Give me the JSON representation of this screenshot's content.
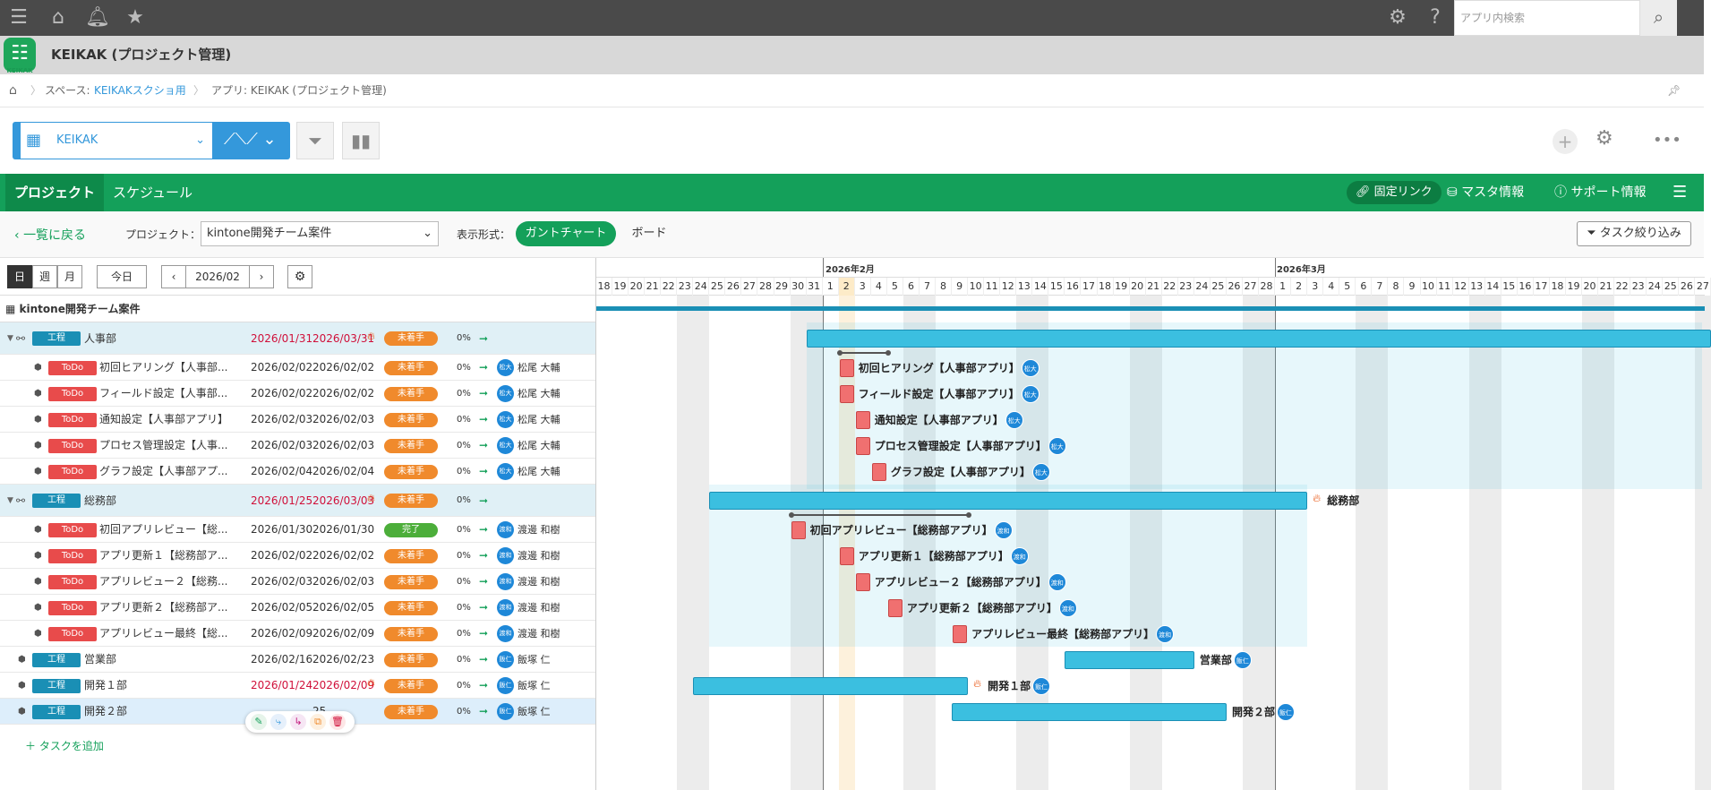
{
  "topbar": {
    "search_placeholder": "アプリ内検索"
  },
  "app": {
    "title": "KEIKAK (プロジェクト管理)",
    "logo_text": "KEIKAK"
  },
  "breadcrumb": {
    "space": "スペース: ",
    "space_link": "KEIKAKスクショ用",
    "app": "アプリ: KEIKAK (プロジェクト管理)"
  },
  "view": {
    "name": "KEIKAK"
  },
  "tabs": {
    "project": "プロジェクト",
    "schedule": "スケジュール",
    "permalink": "固定リンク",
    "master": "マスタ情報",
    "support": "サポート情報"
  },
  "filter": {
    "back": "一覧に戻る",
    "project_label": "プロジェクト：",
    "project_value": "kintone開発チーム案件",
    "display_label": "表示形式：",
    "gantt": "ガントチャート",
    "board": "ボード",
    "task_filter": "タスク絞り込み"
  },
  "controls": {
    "day": "日",
    "week": "週",
    "month": "月",
    "today": "今日",
    "current": "2026/02"
  },
  "project_title": "kintone開発チーム案件",
  "add_task": "＋ タスクを追加",
  "months": [
    "2026年2月",
    "2026年3月"
  ],
  "days": [
    "18",
    "19",
    "20",
    "21",
    "22",
    "23",
    "24",
    "25",
    "26",
    "27",
    "28",
    "29",
    "30",
    "31",
    "1",
    "2",
    "3",
    "4",
    "5",
    "6",
    "7",
    "8",
    "9",
    "10",
    "11",
    "12",
    "13",
    "14",
    "15",
    "16",
    "17",
    "18",
    "19",
    "20",
    "21",
    "22",
    "23",
    "24",
    "25",
    "26",
    "27",
    "28",
    "1",
    "2",
    "3",
    "4",
    "5",
    "6",
    "7",
    "8",
    "9",
    "10",
    "11",
    "12",
    "13",
    "14",
    "15",
    "16",
    "17",
    "18",
    "19",
    "20",
    "21",
    "22",
    "23",
    "24",
    "25",
    "26",
    "27"
  ],
  "colors": {
    "green": "#14a05a",
    "blue": "#3498db",
    "bar": "#3bbfe0",
    "todo": "#e84b4b",
    "pending": "#f08a2c",
    "done": "#4cae3a"
  },
  "rows": [
    {
      "kind": "group",
      "type": "工程",
      "name": "人事部",
      "start": "2026/01/31",
      "end": "2026/03/31",
      "late": true,
      "status": "未着手",
      "progress": "0%",
      "bar_label": ""
    },
    {
      "kind": "task",
      "type": "ToDo",
      "name": "初回ヒアリング【人事部...",
      "start": "2026/02/02",
      "end": "2026/02/02",
      "status": "未着手",
      "progress": "0%",
      "avatar": "松大",
      "user": "松尾 大輔",
      "bar_label": "初回ヒアリング【人事部アプリ】"
    },
    {
      "kind": "task",
      "type": "ToDo",
      "name": "フィールド設定【人事部...",
      "start": "2026/02/02",
      "end": "2026/02/02",
      "status": "未着手",
      "progress": "0%",
      "avatar": "松大",
      "user": "松尾 大輔",
      "bar_label": "フィールド設定【人事部アプリ】"
    },
    {
      "kind": "task",
      "type": "ToDo",
      "name": "通知設定【人事部アプリ】",
      "start": "2026/02/03",
      "end": "2026/02/03",
      "status": "未着手",
      "progress": "0%",
      "avatar": "松大",
      "user": "松尾 大輔",
      "bar_label": "通知設定【人事部アプリ】"
    },
    {
      "kind": "task",
      "type": "ToDo",
      "name": "プロセス管理設定【人事...",
      "start": "2026/02/03",
      "end": "2026/02/03",
      "status": "未着手",
      "progress": "0%",
      "avatar": "松大",
      "user": "松尾 大輔",
      "bar_label": "プロセス管理設定【人事部アプリ】"
    },
    {
      "kind": "task",
      "type": "ToDo",
      "name": "グラフ設定【人事部アプ...",
      "start": "2026/02/04",
      "end": "2026/02/04",
      "status": "未着手",
      "progress": "0%",
      "avatar": "松大",
      "user": "松尾 大輔",
      "bar_label": "グラフ設定【人事部アプリ】"
    },
    {
      "kind": "group",
      "type": "工程",
      "name": "総務部",
      "start": "2026/01/25",
      "end": "2026/03/03",
      "late": true,
      "status": "未着手",
      "progress": "0%",
      "bar_label": "総務部"
    },
    {
      "kind": "task",
      "type": "ToDo",
      "name": "初回アプリレビュー【総...",
      "start": "2026/01/30",
      "end": "2026/01/30",
      "status": "完了",
      "progress": "0%",
      "avatar": "渡和",
      "user": "渡邊 和樹",
      "bar_label": "初回アプリレビュー【総務部アプリ】"
    },
    {
      "kind": "task",
      "type": "ToDo",
      "name": "アプリ更新１【総務部ア...",
      "start": "2026/02/02",
      "end": "2026/02/02",
      "status": "未着手",
      "progress": "0%",
      "avatar": "渡和",
      "user": "渡邊 和樹",
      "bar_label": "アプリ更新１【総務部アプリ】"
    },
    {
      "kind": "task",
      "type": "ToDo",
      "name": "アプリレビュー２【総務...",
      "start": "2026/02/03",
      "end": "2026/02/03",
      "status": "未着手",
      "progress": "0%",
      "avatar": "渡和",
      "user": "渡邊 和樹",
      "bar_label": "アプリレビュー２【総務部アプリ】"
    },
    {
      "kind": "task",
      "type": "ToDo",
      "name": "アプリ更新２【総務部ア...",
      "start": "2026/02/05",
      "end": "2026/02/05",
      "status": "未着手",
      "progress": "0%",
      "avatar": "渡和",
      "user": "渡邊 和樹",
      "bar_label": "アプリ更新２【総務部アプリ】"
    },
    {
      "kind": "task",
      "type": "ToDo",
      "name": "アプリレビュー最終【総...",
      "start": "2026/02/09",
      "end": "2026/02/09",
      "status": "未着手",
      "progress": "0%",
      "avatar": "渡和",
      "user": "渡邊 和樹",
      "bar_label": "アプリレビュー最終【総務部アプリ】"
    },
    {
      "kind": "proc",
      "type": "工程",
      "name": "営業部",
      "start": "2026/02/16",
      "end": "2026/02/23",
      "late": false,
      "status": "未着手",
      "progress": "0%",
      "avatar": "飯仁",
      "user": "飯塚 仁",
      "bar_label": "営業部"
    },
    {
      "kind": "proc",
      "type": "工程",
      "name": "開発１部",
      "start": "2026/01/24",
      "end": "2026/02/09",
      "late": true,
      "status": "未着手",
      "progress": "0%",
      "avatar": "飯仁",
      "user": "飯塚 仁",
      "bar_label": "開発１部"
    },
    {
      "kind": "proc",
      "type": "工程",
      "name": "開発２部",
      "start": "",
      "end": "25",
      "late": false,
      "status": "未着手",
      "progress": "0%",
      "avatar": "飯仁",
      "user": "飯塚 仁",
      "bar_label": "開発２部"
    }
  ]
}
